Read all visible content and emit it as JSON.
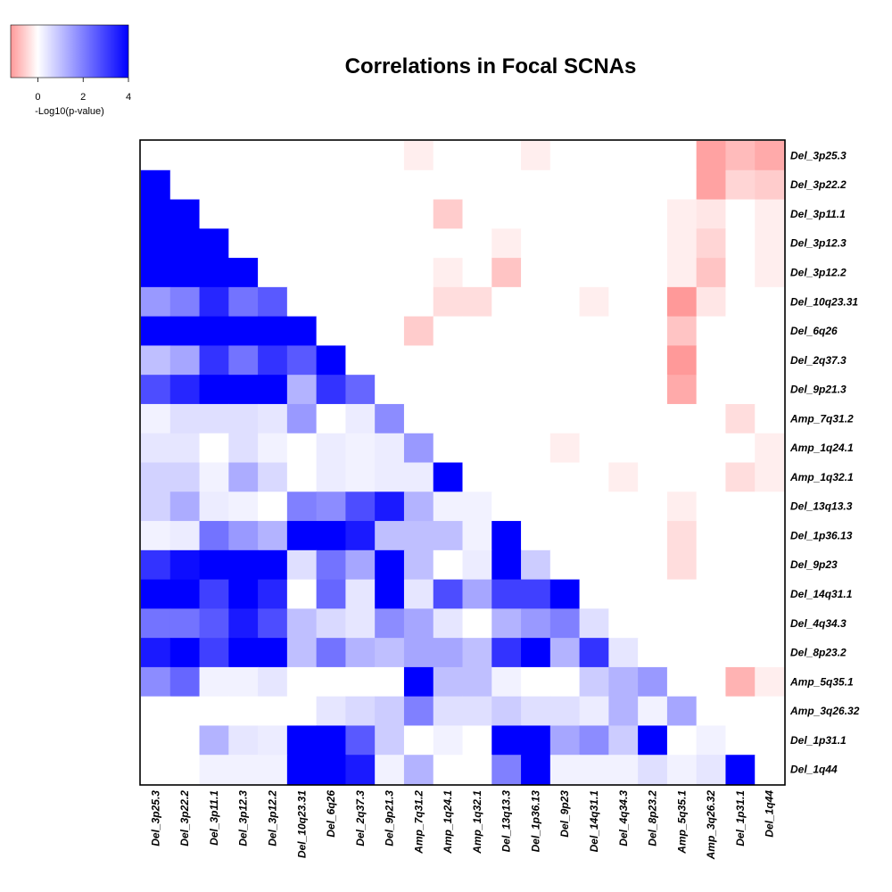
{
  "chart_data": {
    "type": "heatmap",
    "title": "Correlations in Focal SCNAs",
    "labels": [
      "Del_3p25.3",
      "Del_3p22.2",
      "Del_3p11.1",
      "Del_3p12.3",
      "Del_3p12.2",
      "Del_10q23.31",
      "Del_6q26",
      "Del_2q37.3",
      "Del_9p21.3",
      "Amp_7q31.2",
      "Amp_1q24.1",
      "Amp_1q32.1",
      "Del_13q13.3",
      "Del_1p36.13",
      "Del_9p23",
      "Del_14q31.1",
      "Del_4q34.3",
      "Del_8p23.2",
      "Amp_5q35.1",
      "Amp_3q26.32",
      "Del_1p31.1",
      "Del_1q44"
    ],
    "value_description": "signed -Log10(p-value); positive (blue) = lower triangle, negative (red) = upper triangle",
    "matrix": [
      [
        0,
        0,
        0,
        0,
        0,
        0,
        0,
        0,
        0,
        -0.2,
        0,
        0,
        0,
        -0.2,
        0,
        0,
        0,
        0,
        0,
        -1.1,
        -0.8,
        -1.0
      ],
      [
        4,
        0,
        0,
        0,
        0,
        0,
        0,
        0,
        0,
        0,
        0,
        0,
        0,
        0,
        0,
        0,
        0,
        0,
        0,
        -1.1,
        -0.5,
        -0.6
      ],
      [
        4,
        4,
        0,
        0,
        0,
        0,
        0,
        0,
        0,
        0,
        -0.6,
        0,
        0,
        0,
        0,
        0,
        0,
        0,
        -0.2,
        -0.3,
        0,
        -0.2
      ],
      [
        4,
        4,
        4,
        0,
        0,
        0,
        0,
        0,
        0,
        0,
        0,
        0,
        -0.2,
        0,
        0,
        0,
        0,
        0,
        -0.2,
        -0.5,
        0,
        -0.2
      ],
      [
        4,
        4,
        4,
        4,
        0,
        0,
        0,
        0,
        0,
        0,
        -0.2,
        0,
        -0.7,
        0,
        0,
        0,
        0,
        0,
        -0.2,
        -0.7,
        0,
        -0.2
      ],
      [
        1.6,
        2.0,
        3.4,
        2.2,
        2.6,
        0,
        0,
        0,
        0,
        0,
        -0.4,
        -0.4,
        0,
        0,
        0,
        -0.2,
        0,
        0,
        -1.2,
        -0.3,
        0,
        0
      ],
      [
        4,
        4,
        4,
        4,
        4,
        4,
        0,
        0,
        0,
        -0.6,
        0,
        0,
        0,
        0,
        0,
        0,
        0,
        0,
        -0.7,
        0,
        0,
        0
      ],
      [
        1.0,
        1.4,
        3.2,
        2.2,
        3.2,
        2.6,
        4,
        0,
        0,
        0,
        0,
        0,
        0,
        0,
        0,
        0,
        0,
        0,
        -1.2,
        0,
        0,
        0
      ],
      [
        2.8,
        3.4,
        4,
        4,
        4,
        1.2,
        3.2,
        2.4,
        0,
        0,
        0,
        0,
        0,
        0,
        0,
        0,
        0,
        0,
        -1.0,
        0,
        0,
        0
      ],
      [
        0.2,
        0.5,
        0.5,
        0.5,
        0.4,
        1.6,
        0,
        0.3,
        1.8,
        0,
        0,
        0,
        0,
        0,
        0,
        0,
        0,
        0,
        0,
        0,
        -0.4,
        0
      ],
      [
        0.4,
        0.4,
        0,
        0.5,
        0.2,
        0,
        0.3,
        0.2,
        0.3,
        1.6,
        0,
        0,
        0,
        0,
        -0.2,
        0,
        0,
        0,
        0,
        0,
        0,
        -0.2
      ],
      [
        0.7,
        0.7,
        0.2,
        1.3,
        0.6,
        0,
        0.3,
        0.2,
        0.3,
        0.3,
        4,
        0,
        0,
        0,
        0,
        0,
        -0.2,
        0,
        0,
        0,
        -0.4,
        -0.2
      ],
      [
        0.7,
        1.3,
        0.3,
        0.2,
        0,
        2.0,
        1.8,
        2.8,
        3.6,
        1.2,
        0.2,
        0.2,
        0,
        0,
        0,
        0,
        0,
        0,
        -0.2,
        0,
        0,
        0
      ],
      [
        0.2,
        0.3,
        2.2,
        1.6,
        1.2,
        4,
        4,
        3.6,
        1.0,
        1.0,
        1.0,
        0.2,
        4,
        0,
        0,
        0,
        0,
        0,
        -0.4,
        0,
        0,
        0
      ],
      [
        3.2,
        3.8,
        4,
        4,
        4,
        0.5,
        2.2,
        1.4,
        4,
        1.0,
        0,
        0.3,
        4,
        0.8,
        0,
        0,
        0,
        0,
        -0.4,
        0,
        0,
        0
      ],
      [
        4,
        4,
        3.0,
        4,
        3.4,
        0,
        2.4,
        0.4,
        4,
        0.4,
        2.8,
        1.4,
        3.0,
        3.0,
        4,
        0,
        0,
        0,
        0,
        0,
        0,
        0
      ],
      [
        2.2,
        2.2,
        2.6,
        3.6,
        2.8,
        1.0,
        0.6,
        0.4,
        1.8,
        1.4,
        0.4,
        0,
        1.2,
        1.6,
        2.0,
        0.5,
        0,
        0,
        0,
        0,
        0,
        0
      ],
      [
        3.6,
        4,
        3.0,
        4,
        4,
        1.0,
        2.2,
        1.2,
        1.0,
        1.4,
        1.4,
        1.0,
        3.2,
        4,
        1.2,
        3.2,
        0.4,
        0,
        0,
        0,
        0,
        0
      ],
      [
        1.8,
        2.4,
        0.2,
        0.2,
        0.4,
        0,
        0,
        0,
        0,
        4,
        1.0,
        1.0,
        0.2,
        0,
        0,
        0.8,
        1.2,
        1.6,
        0,
        0,
        -0.9,
        -0.2
      ],
      [
        0,
        0,
        0,
        0,
        0,
        0,
        0.4,
        0.6,
        0.8,
        2.0,
        0.5,
        0.5,
        0.8,
        0.5,
        0.5,
        0.3,
        1.2,
        0.2,
        1.4,
        0,
        0,
        0
      ],
      [
        0,
        0,
        1.2,
        0.4,
        0.3,
        4,
        4,
        2.6,
        0.8,
        0,
        0.2,
        0,
        4,
        4,
        1.4,
        1.8,
        0.8,
        4,
        0,
        0.2,
        0,
        0
      ],
      [
        0,
        0,
        0.2,
        0.2,
        0.2,
        4,
        4,
        3.6,
        0.2,
        1.2,
        0,
        0,
        2.0,
        4,
        0.2,
        0.2,
        0.2,
        0.5,
        0.2,
        0.4,
        4,
        0
      ]
    ],
    "legend": {
      "title": "-Log10(p-value)",
      "ticks": [
        0,
        2,
        4
      ],
      "range": [
        -1.2,
        4
      ],
      "low_color": "#ff9999",
      "mid_color": "#ffffff",
      "high_color": "#0000ff"
    }
  }
}
